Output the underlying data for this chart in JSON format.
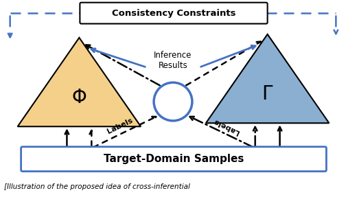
{
  "bg_color": "#ffffff",
  "fig_width": 5.04,
  "fig_height": 3.0,
  "dpi": 100,
  "blue": "#4472c4",
  "black": "#000000",
  "phi_color": "#f5d08a",
  "gamma_color": "#8bafd1",
  "consistency_text": "Consistency Constraints",
  "target_text": "Target-Domain Samples",
  "inference_text": "Inference\nResults",
  "labels_text": "Labels",
  "caption": "[Illustration of the proposed idea of cross-inferential"
}
